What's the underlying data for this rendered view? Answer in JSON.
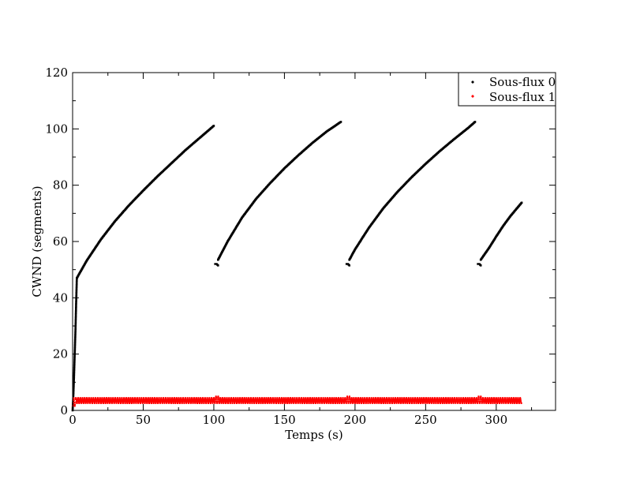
{
  "chart_data": {
    "type": "scatter",
    "title": "",
    "xlabel": "Temps (s)",
    "ylabel": "CWND (segments)",
    "xlim": [
      0,
      342
    ],
    "ylim": [
      0,
      120
    ],
    "xticks": [
      0,
      50,
      100,
      150,
      200,
      250,
      300
    ],
    "yticks": [
      0,
      20,
      40,
      60,
      80,
      100,
      120
    ],
    "grid": false,
    "legend_position": "top-right",
    "series": [
      {
        "name": "Sous-flux 0",
        "color": "#000000",
        "marker": "dot",
        "segments": [
          {
            "x": [
              0,
              0.5,
              1,
              1.5,
              2,
              2.5,
              3
            ],
            "y": [
              0,
              5,
              12,
              20,
              28,
              38,
              47
            ]
          },
          {
            "x": [
              3,
              10,
              20,
              30,
              40,
              50,
              60,
              70,
              80,
              90,
              100
            ],
            "y": [
              47,
              53.2,
              60.7,
              67.2,
              72.9,
              78.1,
              83.1,
              87.8,
              92.5,
              96.8,
              101.1
            ]
          },
          {
            "x": [
              101,
              102,
              103
            ],
            "y": [
              52,
              52,
              51.5
            ]
          },
          {
            "x": [
              103,
              110,
              120,
              130,
              140,
              150,
              160,
              170,
              180,
              190
            ],
            "y": [
              53.5,
              60.2,
              68.5,
              75.2,
              80.8,
              86,
              90.7,
              95.1,
              99.1,
              102.5
            ]
          },
          {
            "x": [
              194,
              195,
              196
            ],
            "y": [
              52,
              52,
              51.5
            ]
          },
          {
            "x": [
              196,
              200,
              210,
              220,
              230,
              240,
              250,
              260,
              270,
              280,
              285
            ],
            "y": [
              53.5,
              57.2,
              65,
              71.8,
              77.6,
              82.8,
              87.6,
              92.1,
              96.3,
              100.3,
              102.5
            ]
          },
          {
            "x": [
              287,
              288,
              289
            ],
            "y": [
              52,
              52,
              51.5
            ]
          },
          {
            "x": [
              289,
              295,
              300,
              305,
              310,
              315,
              318
            ],
            "y": [
              53.5,
              57.8,
              61.8,
              65.6,
              69,
              72,
              73.8
            ]
          }
        ]
      },
      {
        "name": "Sous-flux 1",
        "color": "#ff0000",
        "marker": "dot",
        "oscillation": {
          "x_start": 0,
          "x_end": 318,
          "low": 2.5,
          "high": 4.5,
          "period": 1.55,
          "restarts": [
            101,
            194,
            287
          ],
          "restart_peak": 5
        }
      }
    ]
  }
}
